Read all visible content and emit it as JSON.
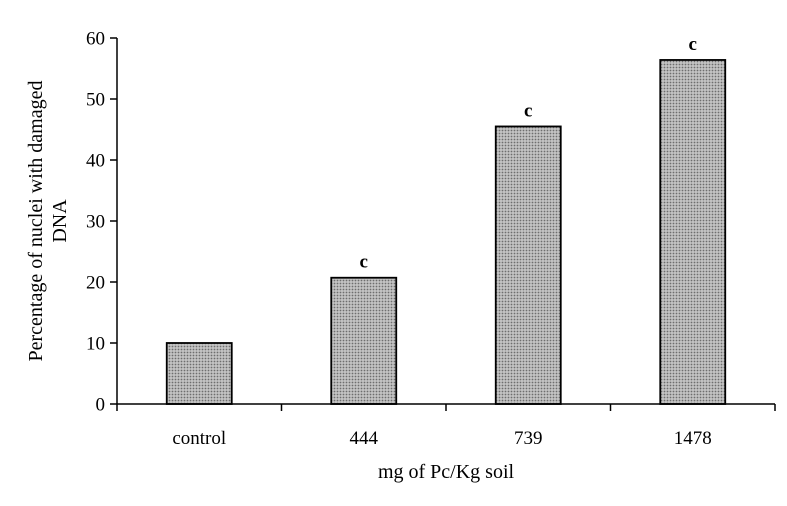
{
  "chart_data": {
    "type": "bar",
    "title": "",
    "categories": [
      "control",
      "444",
      "739",
      "1478"
    ],
    "values": [
      10,
      20.7,
      45.5,
      56.4
    ],
    "annotations": [
      "",
      "c",
      "c",
      "c"
    ],
    "xlabel": "mg of Pc/Kg soil",
    "ylabel_lines": [
      "Percentage of nuclei with damaged",
      "DNA"
    ],
    "ylim": [
      0,
      60
    ],
    "yticks": [
      0,
      10,
      20,
      30,
      40,
      50,
      60
    ],
    "grid": false,
    "legend": "none",
    "bar_color": "#b8b8b8",
    "bar_pattern": "dotted-stipple"
  }
}
